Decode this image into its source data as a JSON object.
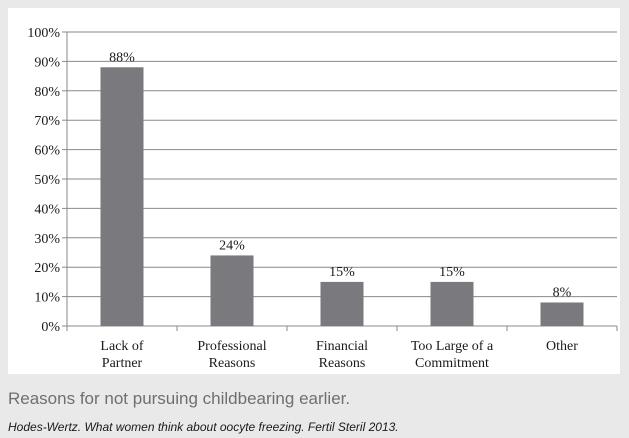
{
  "chart_data": {
    "type": "bar",
    "categories": [
      [
        "Lack of",
        "Partner"
      ],
      [
        "Professional",
        "Reasons"
      ],
      [
        "Financial",
        "Reasons"
      ],
      [
        "Too Large of a",
        "Commitment"
      ],
      [
        "Other"
      ]
    ],
    "values": [
      88,
      24,
      15,
      15,
      8
    ],
    "data_labels": [
      "88%",
      "24%",
      "15%",
      "15%",
      "8%"
    ],
    "yticks": [
      "0%",
      "10%",
      "20%",
      "30%",
      "40%",
      "50%",
      "60%",
      "70%",
      "80%",
      "90%",
      "100%"
    ],
    "ylim": [
      0,
      100
    ],
    "grid": true,
    "bar_color": "#7a7a7e"
  },
  "caption": "Reasons for not pursuing childbearing earlier.",
  "source": "Hodes-Wertz. What women think about oocyte freezing. Fertil Steril 2013."
}
